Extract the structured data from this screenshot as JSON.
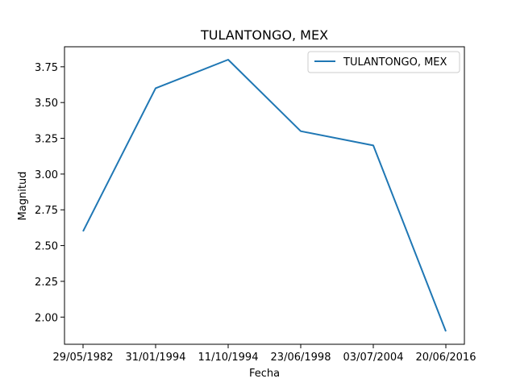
{
  "chart_data": {
    "type": "line",
    "title": "TULANTONGO, MEX",
    "xlabel": "Fecha",
    "ylabel": "Magnitud",
    "categories": [
      "29/05/1982",
      "31/01/1994",
      "11/10/1994",
      "23/06/1998",
      "03/07/2004",
      "20/06/2016"
    ],
    "series": [
      {
        "name": "TULANTONGO, MEX",
        "values": [
          2.6,
          3.6,
          3.8,
          3.3,
          3.2,
          1.9
        ],
        "color": "#1f77b4"
      }
    ],
    "ylim": [
      1.81,
      3.89
    ],
    "yticks": [
      "2.00",
      "2.25",
      "2.50",
      "2.75",
      "3.00",
      "3.25",
      "3.50",
      "3.75"
    ],
    "grid": false,
    "legend_position": "top-right"
  }
}
